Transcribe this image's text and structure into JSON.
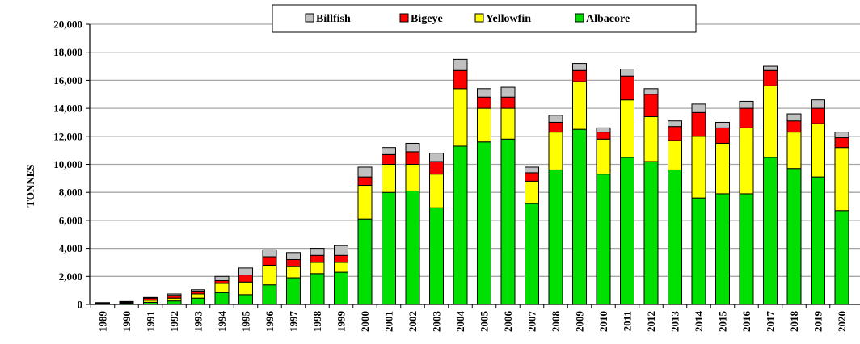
{
  "chart_data": {
    "type": "bar",
    "stacked": true,
    "title": "",
    "xlabel": "",
    "ylabel": "TONNES",
    "ylim": [
      0,
      20000
    ],
    "yticks": [
      "0",
      "2,000",
      "4,000",
      "6,000",
      "8,000",
      "10,000",
      "12,000",
      "14,000",
      "16,000",
      "18,000",
      "20,000"
    ],
    "ytick_values": [
      0,
      2000,
      4000,
      6000,
      8000,
      10000,
      12000,
      14000,
      16000,
      18000,
      20000
    ],
    "grid": "horizontal",
    "legend_position": "top",
    "categories": [
      "1989",
      "1990",
      "1991",
      "1992",
      "1993",
      "1994",
      "1995",
      "1996",
      "1997",
      "1998",
      "1999",
      "2000",
      "2001",
      "2002",
      "2003",
      "2004",
      "2005",
      "2006",
      "2007",
      "2008",
      "2009",
      "2010",
      "2011",
      "2012",
      "2013",
      "2014",
      "2015",
      "2016",
      "2017",
      "2018",
      "2019",
      "2020"
    ],
    "series": [
      {
        "name": "Albacore",
        "color": "#00e000",
        "values": [
          50,
          80,
          150,
          250,
          450,
          850,
          700,
          1400,
          1900,
          2200,
          2300,
          6100,
          8000,
          8100,
          6900,
          11300,
          11600,
          11800,
          7200,
          9600,
          12500,
          9300,
          10500,
          10200,
          9600,
          7600,
          7900,
          7900,
          10500,
          9700,
          9100,
          6700
        ]
      },
      {
        "name": "Yellowfin",
        "color": "#ffff00",
        "values": [
          30,
          50,
          150,
          200,
          300,
          650,
          900,
          1400,
          800,
          800,
          700,
          2400,
          2000,
          1900,
          2400,
          4100,
          2400,
          2200,
          1600,
          2700,
          3400,
          2500,
          4100,
          3200,
          2100,
          4400,
          3600,
          4700,
          5100,
          2600,
          3800,
          4500
        ]
      },
      {
        "name": "Bigeye",
        "color": "#ff0000",
        "values": [
          30,
          50,
          150,
          200,
          200,
          200,
          500,
          600,
          500,
          500,
          500,
          600,
          700,
          900,
          900,
          1300,
          800,
          800,
          600,
          700,
          800,
          500,
          1700,
          1600,
          1000,
          1700,
          1100,
          1400,
          1100,
          800,
          1100,
          700
        ]
      },
      {
        "name": "Billfish",
        "color": "#c0c0c0",
        "values": [
          20,
          30,
          50,
          100,
          100,
          300,
          500,
          500,
          500,
          500,
          700,
          700,
          500,
          600,
          600,
          800,
          600,
          700,
          400,
          500,
          500,
          300,
          500,
          400,
          400,
          600,
          400,
          500,
          300,
          500,
          600,
          400
        ]
      }
    ],
    "legend_order": [
      "Billfish",
      "Bigeye",
      "Yellowfin",
      "Albacore"
    ]
  }
}
